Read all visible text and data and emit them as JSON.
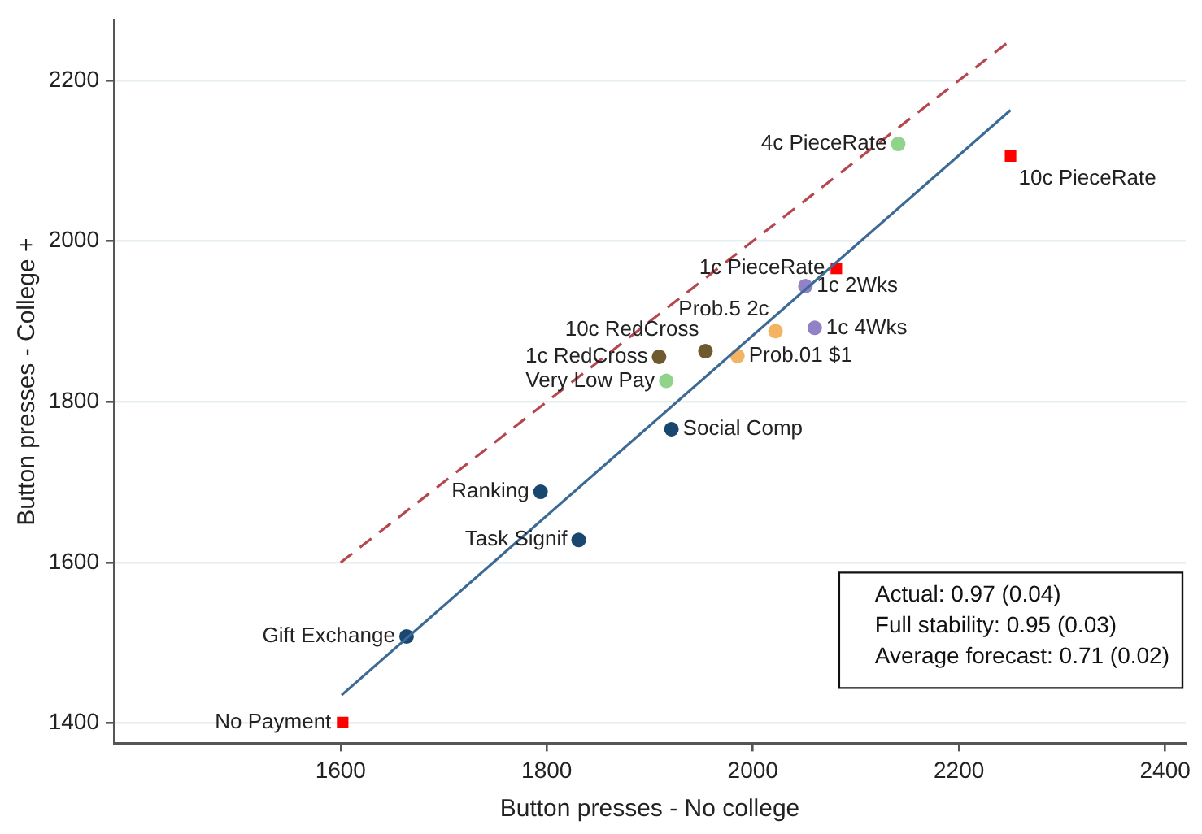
{
  "chart_data": {
    "type": "scatter",
    "xlabel": "Button presses - No college",
    "ylabel": "Button presses - College +",
    "xlim": [
      1380,
      2420
    ],
    "ylim": [
      1375,
      2275
    ],
    "xticks": [
      1600,
      1800,
      2000,
      2200,
      2400
    ],
    "yticks": [
      1400,
      1600,
      1800,
      2000,
      2200
    ],
    "grid": "y",
    "legend": false,
    "series": [
      {
        "type": "line",
        "color": "#b5474f",
        "line_style": "dashed",
        "marker": "none",
        "x": [
          1600,
          2250
        ],
        "values": [
          1600,
          2250
        ]
      },
      {
        "type": "line",
        "color": "#3b6a96",
        "line_style": "solid",
        "marker": "none",
        "x": [
          1601,
          2250
        ],
        "values": [
          1435,
          2163
        ]
      },
      {
        "color": "#1a476f",
        "marker": "circle",
        "x": [
          1664,
          1831,
          1794,
          1921
        ],
        "values": [
          1508,
          1628,
          1688,
          1766
        ]
      },
      {
        "color": "#ff0000",
        "marker": "square",
        "x": [
          1602,
          2081,
          2250
        ],
        "values": [
          1401,
          1966,
          2106
        ]
      },
      {
        "color": "#90d38b",
        "marker": "circle",
        "x": [
          1916,
          2141
        ],
        "values": [
          1826,
          2121
        ]
      },
      {
        "color": "#6e5a2e",
        "marker": "circle",
        "x": [
          1909,
          1954
        ],
        "values": [
          1856,
          1863
        ]
      },
      {
        "color": "#f2b463",
        "marker": "circle",
        "x": [
          1985,
          2022
        ],
        "values": [
          1857,
          1888
        ]
      },
      {
        "color": "#9181c6",
        "marker": "circle",
        "x": [
          2060,
          2051
        ],
        "values": [
          1892,
          1944
        ]
      }
    ],
    "annotations": [
      {
        "text": "No Payment",
        "x": 1602,
        "y": 1401
      },
      {
        "text": "Gift Exchange",
        "x": 1664,
        "y": 1508
      },
      {
        "text": "Task Signif",
        "x": 1831,
        "y": 1628
      },
      {
        "text": "Ranking",
        "x": 1794,
        "y": 1688
      },
      {
        "text": "Social Comp",
        "x": 1921,
        "y": 1766
      },
      {
        "text": "Very Low Pay",
        "x": 1916,
        "y": 1826
      },
      {
        "text": "1c RedCross",
        "x": 1909,
        "y": 1856
      },
      {
        "text": "10c RedCross",
        "x": 1954,
        "y": 1863
      },
      {
        "text": "Prob.01 $1",
        "x": 1985,
        "y": 1857
      },
      {
        "text": "Prob.5 2c",
        "x": 2022,
        "y": 1888
      },
      {
        "text": "1c 4Wks",
        "x": 2060,
        "y": 1892
      },
      {
        "text": "1c 2Wks",
        "x": 2051,
        "y": 1944
      },
      {
        "text": "1c PieceRate",
        "x": 2081,
        "y": 1966
      },
      {
        "text": "4c PieceRate",
        "x": 2141,
        "y": 2121
      },
      {
        "text": "10c PieceRate",
        "x": 2250,
        "y": 2106
      },
      "Actual: 0.97 (0.04)",
      "Full stability: 0.95 (0.03)",
      "Average forecast: 0.71 (0.02)"
    ]
  }
}
